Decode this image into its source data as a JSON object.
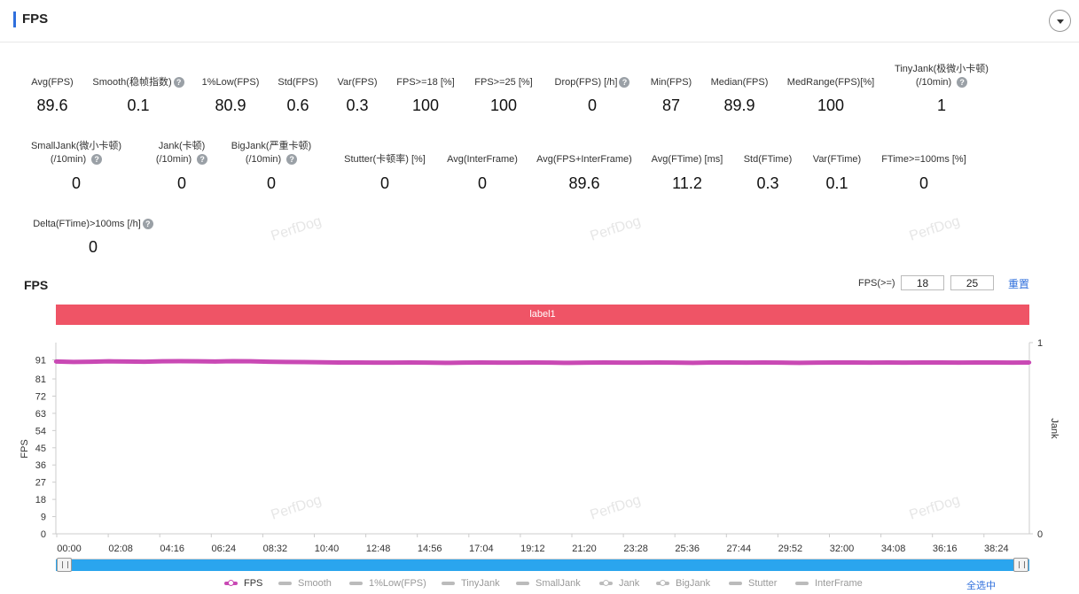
{
  "header": {
    "title": "FPS"
  },
  "metrics": [
    {
      "label": "Avg(FPS)",
      "value": "89.6",
      "help": false
    },
    {
      "label": "Smooth(稳帧指数)",
      "value": "0.1",
      "help": true
    },
    {
      "label": "1%Low(FPS)",
      "value": "80.9",
      "help": false
    },
    {
      "label": "Std(FPS)",
      "value": "0.6",
      "help": false
    },
    {
      "label": "Var(FPS)",
      "value": "0.3",
      "help": false
    },
    {
      "label": "FPS>=18 [%]",
      "value": "100",
      "help": false
    },
    {
      "label": "FPS>=25 [%]",
      "value": "100",
      "help": false
    },
    {
      "label": "Drop(FPS) [/h]",
      "value": "0",
      "help": true
    },
    {
      "label": "Min(FPS)",
      "value": "87",
      "help": false
    },
    {
      "label": "Median(FPS)",
      "value": "89.9",
      "help": false
    },
    {
      "label": "MedRange(FPS)[%]",
      "value": "100",
      "help": false
    },
    {
      "label": "TinyJank(极微小卡顿)",
      "label2": "(/10min)",
      "value": "1",
      "help": true
    },
    {
      "label": "SmallJank(微小卡顿)",
      "label2": "(/10min)",
      "value": "0",
      "help": true
    },
    {
      "label": "Jank(卡顿)",
      "label2": "(/10min)",
      "value": "0",
      "help": true
    },
    {
      "label": "BigJank(严重卡顿)",
      "label2": "(/10min)",
      "value": "0",
      "help": true
    },
    {
      "label": "Stutter(卡顿率) [%]",
      "value": "0",
      "help": false
    },
    {
      "label": "Avg(InterFrame)",
      "value": "0",
      "help": false
    },
    {
      "label": "Avg(FPS+InterFrame)",
      "value": "89.6",
      "help": false
    },
    {
      "label": "Avg(FTime) [ms]",
      "value": "11.2",
      "help": false
    },
    {
      "label": "Std(FTime)",
      "value": "0.3",
      "help": false
    },
    {
      "label": "Var(FTime)",
      "value": "0.1",
      "help": false
    },
    {
      "label": "FTime>=100ms [%]",
      "value": "0",
      "help": false
    },
    {
      "label": "Delta(FTime)>100ms [/h]",
      "value": "0",
      "help": true
    }
  ],
  "watermark_text": "PerfDog",
  "chart_controls": {
    "title": "FPS",
    "threshold_label": "FPS(>=)",
    "threshold_1": "18",
    "threshold_2": "25",
    "reset_label": "重置",
    "band_label": "label1"
  },
  "chart_data": {
    "type": "line",
    "ylabel": "FPS",
    "y2label": "Jank",
    "ylim": [
      0,
      100
    ],
    "y_ticks": [
      "0",
      "9",
      "18",
      "27",
      "36",
      "45",
      "54",
      "63",
      "72",
      "81",
      "91"
    ],
    "y2_ticks": [
      "0",
      "1"
    ],
    "x_ticks": [
      "00:00",
      "02:08",
      "04:16",
      "06:24",
      "08:32",
      "10:40",
      "12:48",
      "14:56",
      "17:04",
      "19:12",
      "21:20",
      "23:28",
      "25:36",
      "27:44",
      "29:52",
      "32:00",
      "34:08",
      "36:16",
      "38:24"
    ],
    "series": [
      {
        "name": "FPS",
        "color": "#c949b4",
        "values": [
          90.1,
          89.9,
          90.0,
          90.2,
          90.1,
          90.0,
          90.2,
          90.3,
          90.2,
          90.1,
          90.3,
          90.2,
          90.0,
          89.9,
          89.8,
          89.7,
          89.6,
          89.6,
          89.5,
          89.5,
          89.6,
          89.5,
          89.4,
          89.5,
          89.6,
          89.5,
          89.5,
          89.6,
          89.5,
          89.4,
          89.5,
          89.6,
          89.5,
          89.5,
          89.6,
          89.5,
          89.4,
          89.6,
          89.6,
          89.5,
          89.6,
          89.5,
          89.4,
          89.5,
          89.6,
          89.6,
          89.5,
          89.6,
          89.5,
          89.6,
          89.6,
          89.5,
          89.6,
          89.6,
          89.5,
          89.6
        ]
      }
    ]
  },
  "legend": [
    {
      "label": "FPS",
      "active": true
    },
    {
      "label": "Smooth",
      "active": false
    },
    {
      "label": "1%Low(FPS)",
      "active": false
    },
    {
      "label": "TinyJank",
      "active": false
    },
    {
      "label": "SmallJank",
      "active": false
    },
    {
      "label": "Jank",
      "active": false
    },
    {
      "label": "BigJank",
      "active": false
    },
    {
      "label": "Stutter",
      "active": false
    },
    {
      "label": "InterFrame",
      "active": false
    }
  ],
  "select_all_label": "全选中"
}
